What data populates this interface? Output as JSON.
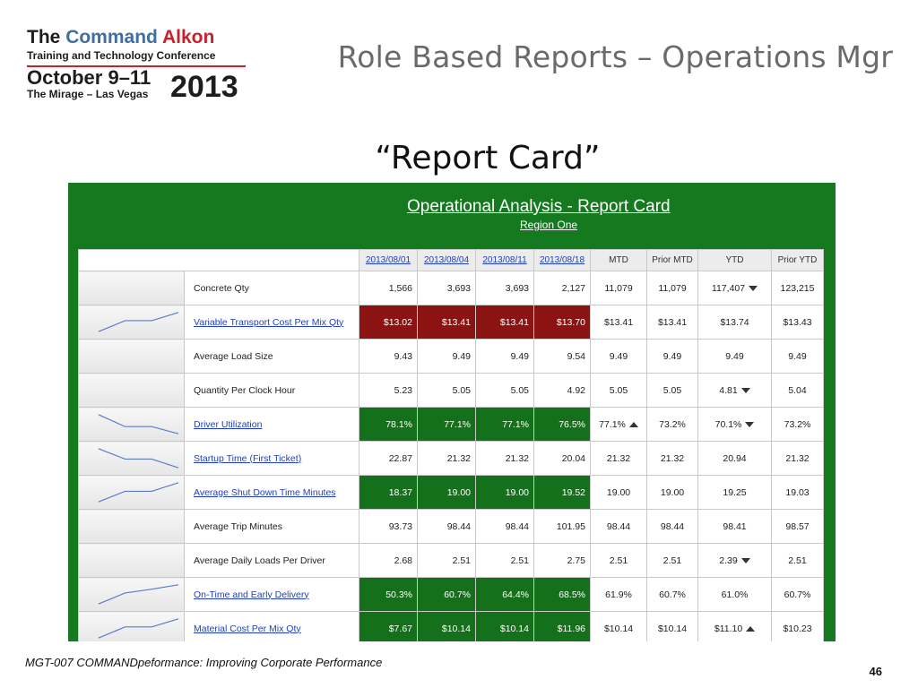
{
  "logo": {
    "line1_the": "The",
    "line1_command": "Command",
    "line1_alkon": "Alkon",
    "line2": "Training and Technology Conference",
    "dates": "October 9–11",
    "venue": "The Mirage – Las Vegas",
    "year": "2013"
  },
  "slide_title": "Role Based Reports – Operations Mgr",
  "subtitle": "“Report Card”",
  "report": {
    "title": "Operational Analysis - Report Card",
    "region": "Region One",
    "columns": [
      "2013/08/01",
      "2013/08/04",
      "2013/08/11",
      "2013/08/18",
      "MTD",
      "Prior MTD",
      "YTD",
      "Prior YTD"
    ],
    "rows": [
      {
        "metric": "Concrete Qty",
        "link": false,
        "spark": null,
        "values": [
          "1,566",
          "3,693",
          "3,693",
          "2,127"
        ],
        "highlight": "none",
        "mtd": "11,079",
        "mtd_arrow": "",
        "prior_mtd": "11,079",
        "ytd": "117,407",
        "ytd_arrow": "down",
        "prior_ytd": "123,215"
      },
      {
        "metric": "Variable Transport Cost Per Mix Qty",
        "link": true,
        "spark": [
          13.02,
          13.41,
          13.41,
          13.7
        ],
        "values": [
          "$13.02",
          "$13.41",
          "$13.41",
          "$13.70"
        ],
        "highlight": "red",
        "mtd": "$13.41",
        "mtd_arrow": "",
        "prior_mtd": "$13.41",
        "ytd": "$13.74",
        "ytd_arrow": "",
        "prior_ytd": "$13.43"
      },
      {
        "metric": "Average Load Size",
        "link": false,
        "spark": null,
        "values": [
          "9.43",
          "9.49",
          "9.49",
          "9.54"
        ],
        "highlight": "none",
        "mtd": "9.49",
        "mtd_arrow": "",
        "prior_mtd": "9.49",
        "ytd": "9.49",
        "ytd_arrow": "",
        "prior_ytd": "9.49"
      },
      {
        "metric": "Quantity Per Clock Hour",
        "link": false,
        "spark": null,
        "values": [
          "5.23",
          "5.05",
          "5.05",
          "4.92"
        ],
        "highlight": "none",
        "mtd": "5.05",
        "mtd_arrow": "",
        "prior_mtd": "5.05",
        "ytd": "4.81",
        "ytd_arrow": "down",
        "prior_ytd": "5.04"
      },
      {
        "metric": "Driver Utilization",
        "link": true,
        "spark": [
          78.1,
          77.1,
          77.1,
          76.5
        ],
        "values": [
          "78.1%",
          "77.1%",
          "77.1%",
          "76.5%"
        ],
        "highlight": "green",
        "mtd": "77.1%",
        "mtd_arrow": "up",
        "prior_mtd": "73.2%",
        "ytd": "70.1%",
        "ytd_arrow": "down",
        "prior_ytd": "73.2%"
      },
      {
        "metric": "Startup Time (First Ticket)",
        "link": true,
        "spark": [
          22.87,
          21.32,
          21.32,
          20.04
        ],
        "values": [
          "22.87",
          "21.32",
          "21.32",
          "20.04"
        ],
        "highlight": "none",
        "mtd": "21.32",
        "mtd_arrow": "",
        "prior_mtd": "21.32",
        "ytd": "20.94",
        "ytd_arrow": "",
        "prior_ytd": "21.32"
      },
      {
        "metric": "Average Shut Down Time Minutes",
        "link": true,
        "spark": [
          18.37,
          19.0,
          19.0,
          19.52
        ],
        "values": [
          "18.37",
          "19.00",
          "19.00",
          "19.52"
        ],
        "highlight": "green",
        "mtd": "19.00",
        "mtd_arrow": "",
        "prior_mtd": "19.00",
        "ytd": "19.25",
        "ytd_arrow": "",
        "prior_ytd": "19.03"
      },
      {
        "metric": "Average Trip Minutes",
        "link": false,
        "spark": null,
        "values": [
          "93.73",
          "98.44",
          "98.44",
          "101.95"
        ],
        "highlight": "none",
        "mtd": "98.44",
        "mtd_arrow": "",
        "prior_mtd": "98.44",
        "ytd": "98.41",
        "ytd_arrow": "",
        "prior_ytd": "98.57"
      },
      {
        "metric": "Average Daily Loads Per Driver",
        "link": false,
        "spark": null,
        "values": [
          "2.68",
          "2.51",
          "2.51",
          "2.75"
        ],
        "highlight": "none",
        "mtd": "2.51",
        "mtd_arrow": "",
        "prior_mtd": "2.51",
        "ytd": "2.39",
        "ytd_arrow": "down",
        "prior_ytd": "2.51"
      },
      {
        "metric": "On-Time and Early Delivery",
        "link": true,
        "spark": [
          50.3,
          60.7,
          64.4,
          68.5
        ],
        "values": [
          "50.3%",
          "60.7%",
          "64.4%",
          "68.5%"
        ],
        "highlight": "green",
        "mtd": "61.9%",
        "mtd_arrow": "",
        "prior_mtd": "60.7%",
        "ytd": "61.0%",
        "ytd_arrow": "",
        "prior_ytd": "60.7%"
      },
      {
        "metric": "Material Cost Per Mix Qty",
        "link": true,
        "spark": [
          7.67,
          10.14,
          10.14,
          11.96
        ],
        "values": [
          "$7.67",
          "$10.14",
          "$10.14",
          "$11.96"
        ],
        "highlight": "green",
        "mtd": "$10.14",
        "mtd_arrow": "",
        "prior_mtd": "$10.14",
        "ytd": "$11.10",
        "ytd_arrow": "up",
        "prior_ytd": "$10.23"
      }
    ]
  },
  "footer": {
    "text": "MGT-007 COMMANDpeformance: Improving Corporate Performance",
    "page": "46"
  },
  "colors": {
    "panel_green": "#157a1f",
    "cell_green": "#15701b",
    "cell_red": "#8b1413",
    "link_blue": "#1f3fbf",
    "title_gray": "#6a6a6a",
    "sparkline": "#5b7bc9"
  }
}
